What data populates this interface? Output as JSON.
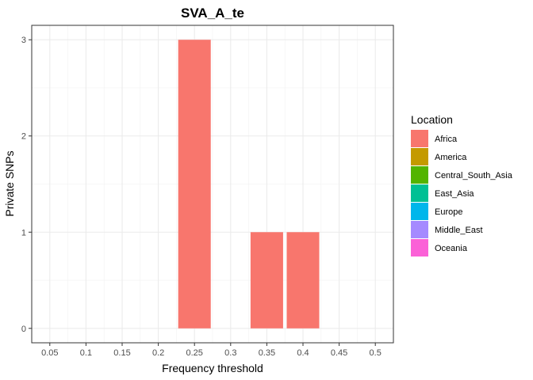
{
  "chart_data": {
    "type": "bar",
    "title": "SVA_A_te",
    "xlabel": "Frequency threshold",
    "ylabel": "Private SNPs",
    "x_ticks": [
      "0.05",
      "0.1",
      "0.15",
      "0.2",
      "0.25",
      "0.3",
      "0.35",
      "0.4",
      "0.45",
      "0.5"
    ],
    "y_ticks": [
      "0",
      "1",
      "2",
      "3"
    ],
    "xlim": [
      0.025,
      0.525
    ],
    "ylim": [
      -0.15,
      3.15
    ],
    "grid": true,
    "legend": {
      "title": "Location",
      "position": "right",
      "entries": [
        {
          "name": "Africa",
          "color": "#F8766D"
        },
        {
          "name": "America",
          "color": "#C49A00"
        },
        {
          "name": "Central_South_Asia",
          "color": "#53B400"
        },
        {
          "name": "East_Asia",
          "color": "#00C094"
        },
        {
          "name": "Europe",
          "color": "#00B6EB"
        },
        {
          "name": "Middle_East",
          "color": "#A58AFF"
        },
        {
          "name": "Oceania",
          "color": "#FB61D7"
        }
      ]
    },
    "series": [
      {
        "name": "Africa",
        "color": "#F8766D",
        "points": [
          {
            "x": 0.25,
            "y": 3
          },
          {
            "x": 0.35,
            "y": 1
          },
          {
            "x": 0.4,
            "y": 1
          }
        ]
      }
    ]
  }
}
